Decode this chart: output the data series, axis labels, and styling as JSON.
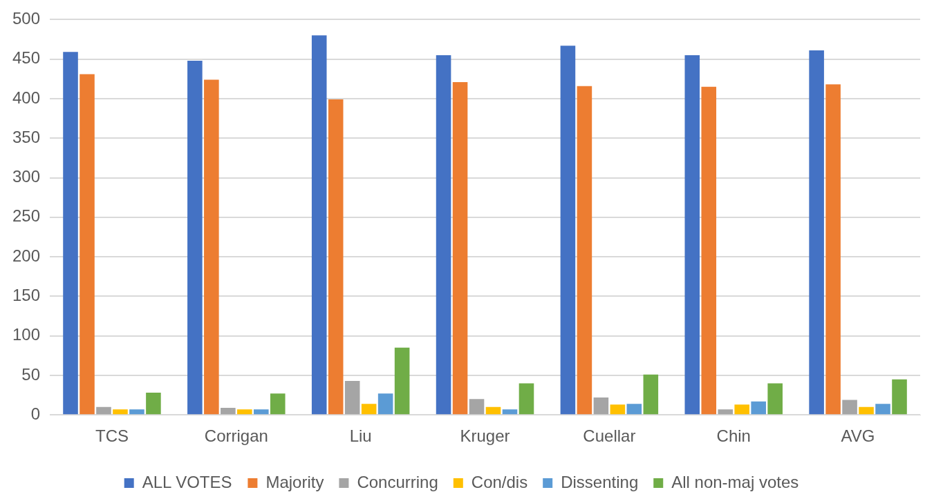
{
  "chart_data": {
    "type": "bar",
    "categories": [
      "TCS",
      "Corrigan",
      "Liu",
      "Kruger",
      "Cuellar",
      "Chin",
      "AVG"
    ],
    "series": [
      {
        "name": "ALL VOTES",
        "color": "#4472c4",
        "values": [
          459,
          448,
          480,
          455,
          467,
          455,
          461
        ]
      },
      {
        "name": "Majority",
        "color": "#ed7d31",
        "values": [
          431,
          424,
          399,
          421,
          416,
          415,
          418
        ]
      },
      {
        "name": "Concurring",
        "color": "#a5a5a5",
        "values": [
          10,
          9,
          43,
          20,
          22,
          7,
          19
        ]
      },
      {
        "name": "Con/dis",
        "color": "#ffc000",
        "values": [
          7,
          7,
          14,
          10,
          13,
          13,
          10
        ]
      },
      {
        "name": "Dissenting",
        "color": "#5b9bd5",
        "values": [
          7,
          7,
          27,
          7,
          14,
          17,
          14
        ]
      },
      {
        "name": "All non-maj votes",
        "color": "#70ad47",
        "values": [
          28,
          27,
          85,
          40,
          51,
          40,
          45
        ]
      }
    ],
    "ylim": [
      0,
      500
    ],
    "yticks": [
      0,
      50,
      100,
      150,
      200,
      250,
      300,
      350,
      400,
      450,
      500
    ],
    "grid": "y",
    "legend": "bottom"
  }
}
